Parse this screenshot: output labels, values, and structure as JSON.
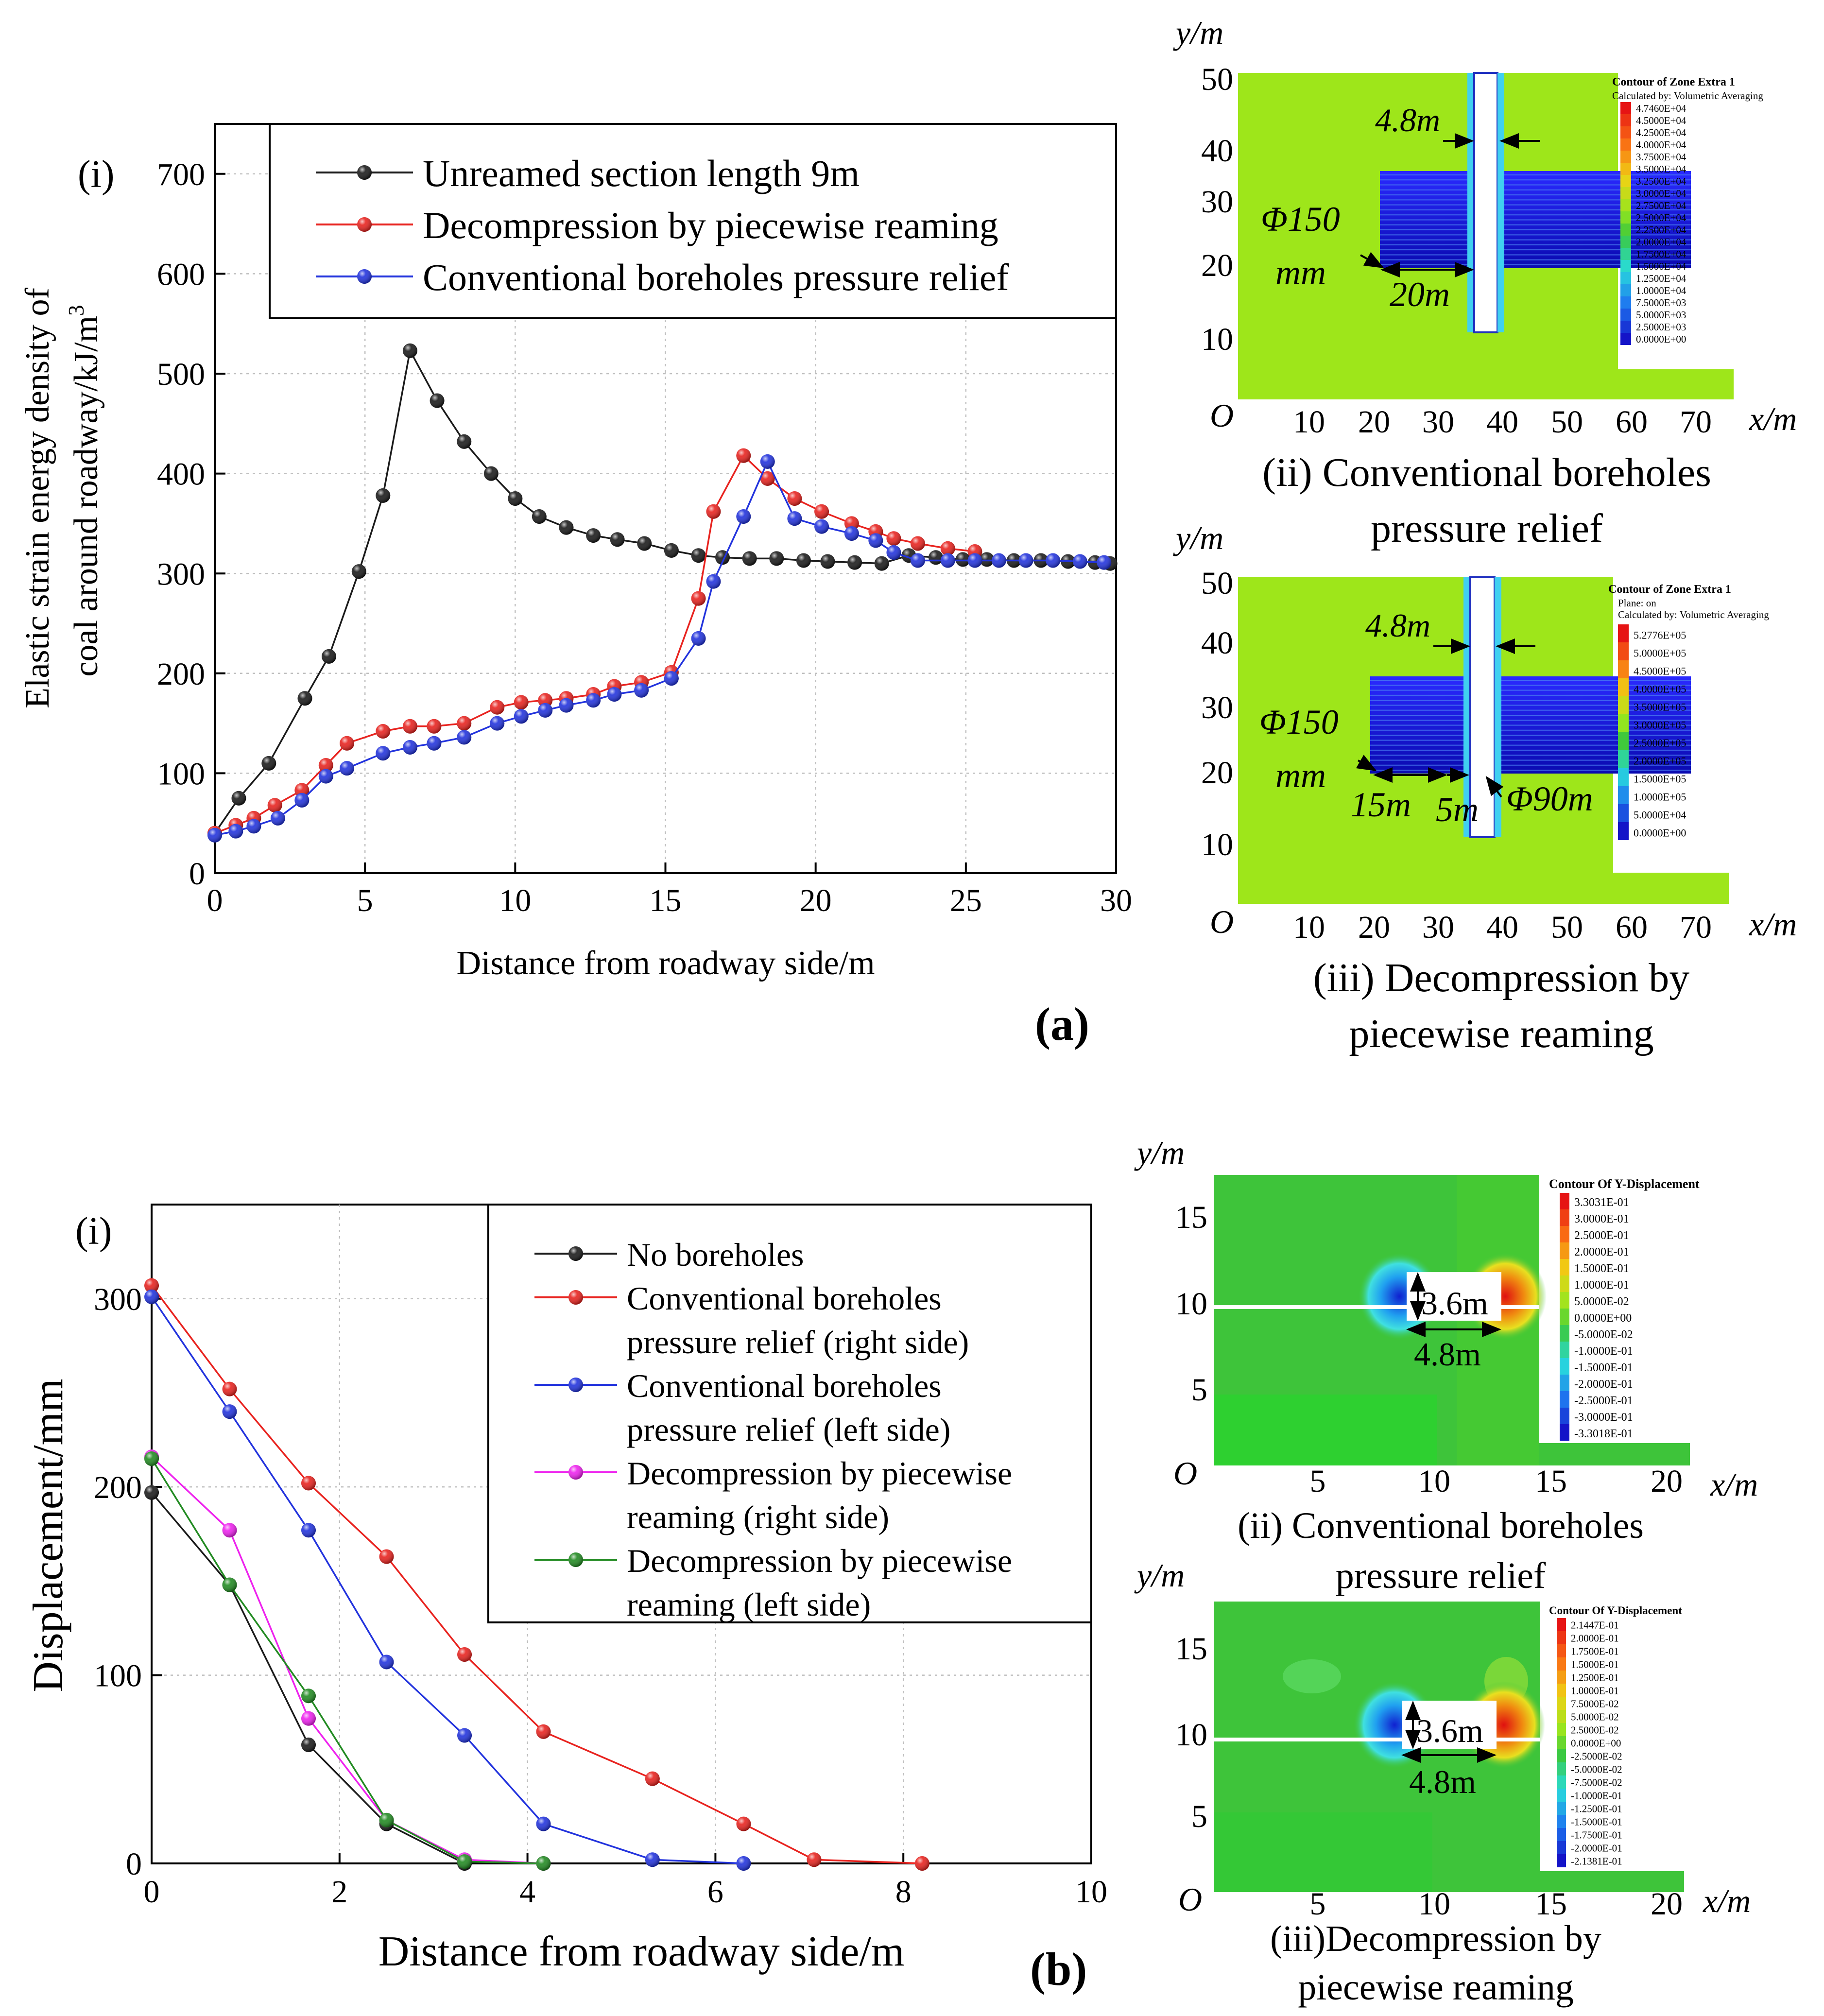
{
  "colors": {
    "black": "#1a1a1a",
    "red": "#e8231f",
    "blue": "#2233dd",
    "magenta": "#ee22ee",
    "green": "#228b22",
    "contour_bg": "#9ee61a",
    "contour_blue": "#1010d0",
    "disp_bg": "#3ec43a"
  },
  "panel_a": {
    "panel_label": "(a)",
    "chart_data": {
      "type": "line",
      "panel_id": "(i)",
      "title": "",
      "xlabel": "Distance from roadway side/m",
      "ylabel_line1": "Elastic strain energy density of",
      "ylabel_line2": "coal around roadway/kJ/m",
      "ylabel_sup": "3",
      "xlim": [
        0,
        30
      ],
      "ylim": [
        0,
        750
      ],
      "xticks": [
        "0",
        "5",
        "10",
        "15",
        "20",
        "25",
        "30"
      ],
      "yticks": [
        "0",
        "100",
        "200",
        "300",
        "400",
        "500",
        "600",
        "700"
      ],
      "legend_position": "top-right",
      "series": [
        {
          "name": "Unreamed section length 9m",
          "color": "#1a1a1a",
          "x": [
            0,
            0.8,
            1.8,
            3.0,
            3.8,
            4.8,
            5.6,
            6.5,
            7.4,
            8.3,
            9.2,
            10.0,
            10.8,
            11.7,
            12.6,
            13.4,
            14.3,
            15.2,
            16.1,
            16.9,
            17.8,
            18.7,
            19.6,
            20.4,
            21.3,
            22.2,
            23.1,
            24.0,
            24.9,
            25.7,
            26.6,
            27.5,
            28.4,
            29.3,
            29.8
          ],
          "y": [
            40,
            75,
            110,
            175,
            217,
            302,
            378,
            523,
            473,
            432,
            400,
            375,
            357,
            346,
            338,
            334,
            330,
            323,
            318,
            316,
            315,
            315,
            313,
            312,
            311,
            310,
            318,
            316,
            314,
            314,
            313,
            313,
            312,
            311,
            310
          ]
        },
        {
          "name": "Decompression by piecewise reaming",
          "color": "#e8231f",
          "x": [
            0,
            0.7,
            1.3,
            2.0,
            2.9,
            3.7,
            4.4,
            5.6,
            6.5,
            7.3,
            8.3,
            9.4,
            10.2,
            11.0,
            11.7,
            12.6,
            13.3,
            14.2,
            15.2,
            16.1,
            16.6,
            17.6,
            18.4,
            19.3,
            20.2,
            21.2,
            22.0,
            22.6,
            23.4,
            24.4,
            25.3
          ],
          "y": [
            40,
            48,
            55,
            68,
            83,
            108,
            130,
            142,
            147,
            147,
            150,
            166,
            171,
            173,
            175,
            179,
            187,
            191,
            201,
            275,
            362,
            418,
            395,
            375,
            362,
            350,
            342,
            335,
            330,
            325,
            322
          ]
        },
        {
          "name": "Conventional boreholes pressure relief",
          "color": "#2233dd",
          "x": [
            0,
            0.7,
            1.3,
            2.1,
            2.9,
            3.7,
            4.4,
            5.6,
            6.5,
            7.3,
            8.3,
            9.4,
            10.2,
            11.0,
            11.7,
            12.6,
            13.3,
            14.2,
            15.2,
            16.1,
            16.6,
            17.6,
            18.4,
            19.3,
            20.2,
            21.2,
            22.0,
            22.6,
            23.4,
            24.4,
            25.3,
            26.1,
            27.0,
            27.9,
            28.8,
            29.6
          ],
          "y": [
            38,
            42,
            47,
            55,
            73,
            97,
            105,
            120,
            126,
            130,
            136,
            150,
            157,
            163,
            168,
            173,
            179,
            183,
            195,
            235,
            292,
            357,
            412,
            355,
            347,
            340,
            333,
            321,
            313,
            313,
            313,
            313,
            313,
            313,
            312,
            311
          ]
        }
      ]
    },
    "contour_ii": {
      "caption_line1": "(ii) Conventional boreholes",
      "caption_line2": "pressure relief",
      "legend_title": "Contour of Zone Extra 1",
      "legend_subtitle": "Calculated by: Volumetric Averaging",
      "legend_values": [
        "4.7460E+04",
        "4.5000E+04",
        "4.2500E+04",
        "4.0000E+04",
        "3.7500E+04",
        "3.5000E+04",
        "3.2500E+04",
        "3.0000E+04",
        "2.7500E+04",
        "2.5000E+04",
        "2.2500E+04",
        "2.0000E+04",
        "1.7500E+04",
        "1.5000E+04",
        "1.2500E+04",
        "1.0000E+04",
        "7.5000E+03",
        "5.0000E+03",
        "2.5000E+03",
        "0.0000E+00"
      ],
      "yaxis_label": "y/m",
      "xaxis_label": "x/m",
      "origin": "O",
      "xticks": [
        "10",
        "20",
        "30",
        "40",
        "50",
        "60",
        "70"
      ],
      "yticks": [
        "10",
        "20",
        "30",
        "40",
        "50"
      ],
      "ann_width": "4.8m",
      "ann_dia_1": "Φ150",
      "ann_dia_2": "mm",
      "ann_length": "20m"
    },
    "contour_iii": {
      "caption_line1": "(iii) Decompression by",
      "caption_line2": "piecewise reaming",
      "legend_title": "Contour of Zone Extra 1",
      "legend_subtitle1": "Plane: on",
      "legend_subtitle2": "Calculated by: Volumetric Averaging",
      "legend_values": [
        "5.2776E+05",
        "5.0000E+05",
        "4.5000E+05",
        "4.0000E+05",
        "3.5000E+05",
        "3.0000E+05",
        "2.5000E+05",
        "2.0000E+05",
        "1.5000E+05",
        "1.0000E+05",
        "5.0000E+04",
        "0.0000E+00"
      ],
      "yaxis_label": "y/m",
      "xaxis_label": "x/m",
      "origin": "O",
      "xticks": [
        "10",
        "20",
        "30",
        "40",
        "50",
        "60",
        "70"
      ],
      "yticks": [
        "10",
        "20",
        "30",
        "40",
        "50"
      ],
      "ann_width": "4.8m",
      "ann_dia_1": "Φ150",
      "ann_dia_2": "mm",
      "ann_len1": "15m",
      "ann_len2": "5m",
      "ann_dia_small": "Φ90m"
    }
  },
  "panel_b": {
    "panel_label": "(b)",
    "chart_data": {
      "type": "line",
      "panel_id": "(i)",
      "title": "",
      "xlabel": "Distance from roadway side/m",
      "ylabel": "Displacement/mm",
      "xlim": [
        0,
        10
      ],
      "ylim": [
        0,
        350
      ],
      "xticks": [
        "0",
        "2",
        "4",
        "6",
        "8",
        "10"
      ],
      "yticks": [
        "0",
        "100",
        "200",
        "300"
      ],
      "legend_position": "top-right",
      "series": [
        {
          "name": "No boreholes",
          "color": "#1a1a1a",
          "x": [
            0,
            0.83,
            1.67,
            2.5,
            3.33
          ],
          "y": [
            197,
            148,
            63,
            21,
            0
          ]
        },
        {
          "name": "Conventional boreholes pressure relief (right side)",
          "name_line1": "Conventional boreholes",
          "name_line2": "pressure relief (right side)",
          "color": "#e8231f",
          "x": [
            0,
            0.83,
            1.67,
            2.5,
            3.33,
            4.17,
            5.33,
            6.3,
            7.05,
            8.2
          ],
          "y": [
            307,
            252,
            202,
            163,
            111,
            70,
            45,
            21,
            2,
            0
          ]
        },
        {
          "name": "Conventional boreholes pressure relief (left side)",
          "name_line1": "Conventional boreholes",
          "name_line2": "pressure relief (left side)",
          "color": "#2233dd",
          "x": [
            0,
            0.83,
            1.67,
            2.5,
            3.33,
            4.17,
            5.33,
            6.3
          ],
          "y": [
            301,
            240,
            177,
            107,
            68,
            21,
            2,
            0
          ]
        },
        {
          "name": "Decompression by piecewise reaming (right side)",
          "name_line1": "Decompression by piecewise",
          "name_line2": "reaming (right side)",
          "color": "#ee22ee",
          "x": [
            0,
            0.83,
            1.67,
            2.5,
            3.33,
            4.17
          ],
          "y": [
            216,
            177,
            77,
            23,
            2,
            0
          ]
        },
        {
          "name": "Decompression by piecewise reaming (left side)",
          "name_line1": "Decompression by piecewise",
          "name_line2": "reaming (left side)",
          "color": "#228b22",
          "x": [
            0,
            0.83,
            1.67,
            2.5,
            3.33,
            4.17
          ],
          "y": [
            215,
            148,
            89,
            23,
            1,
            0
          ]
        }
      ]
    },
    "disp_ii": {
      "caption_line1": "(ii) Conventional boreholes",
      "caption_line2": "pressure relief",
      "legend_title": "Contour Of Y-Displacement",
      "legend_values": [
        "3.3031E-01",
        "3.0000E-01",
        "2.5000E-01",
        "2.0000E-01",
        "1.5000E-01",
        "1.0000E-01",
        "5.0000E-02",
        "0.0000E+00",
        "-5.0000E-02",
        "-1.0000E-01",
        "-1.5000E-01",
        "-2.0000E-01",
        "-2.5000E-01",
        "-3.0000E-01",
        "-3.3018E-01"
      ],
      "yaxis_label": "y/m",
      "xaxis_label": "x/m",
      "origin": "O",
      "xticks": [
        "5",
        "10",
        "15",
        "20"
      ],
      "yticks": [
        "5",
        "10",
        "15"
      ],
      "ann_height": "3.6m",
      "ann_width": "4.8m"
    },
    "disp_iii": {
      "caption_line1": "(iii)Decompression by",
      "caption_line2": "piecewise reaming",
      "legend_title": "Contour Of Y-Displacement",
      "legend_values": [
        "2.1447E-01",
        "2.0000E-01",
        "1.7500E-01",
        "1.5000E-01",
        "1.2500E-01",
        "1.0000E-01",
        "7.5000E-02",
        "5.0000E-02",
        "2.5000E-02",
        "0.0000E+00",
        "-2.5000E-02",
        "-5.0000E-02",
        "-7.5000E-02",
        "-1.0000E-01",
        "-1.2500E-01",
        "-1.5000E-01",
        "-1.7500E-01",
        "-2.0000E-01",
        "-2.1381E-01"
      ],
      "yaxis_label": "y/m",
      "xaxis_label": "x/m",
      "origin": "O",
      "xticks": [
        "5",
        "10",
        "15",
        "20"
      ],
      "yticks": [
        "5",
        "10",
        "15"
      ],
      "ann_height": "3.6m",
      "ann_width": "4.8m"
    }
  }
}
